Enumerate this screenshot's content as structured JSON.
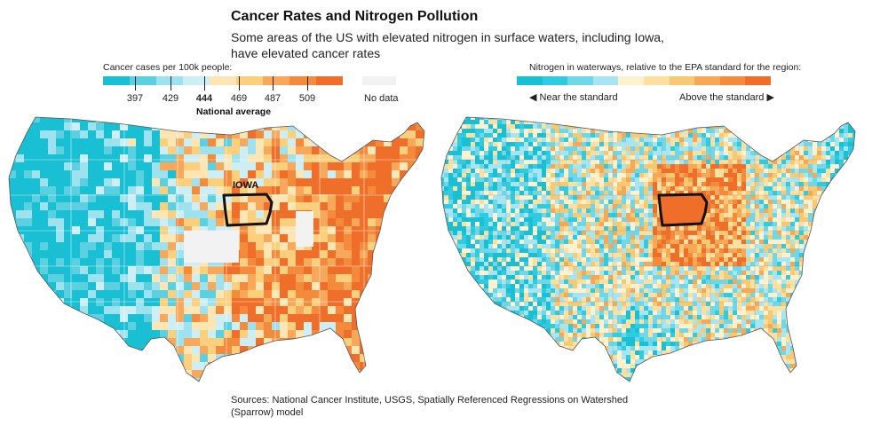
{
  "header": {
    "title": "Cancer Rates and Nitrogen Pollution",
    "subtitle": "Some areas of the US with elevated nitrogen in surface waters, including Iowa, have elevated cancer rates"
  },
  "cancer_legend": {
    "title": "Cancer cases per 100k people:",
    "colors": [
      "#19bfd3",
      "#5ad0e0",
      "#9fe2ef",
      "#cdeef5",
      "#fde6b4",
      "#fbcf7c",
      "#f7a85a",
      "#f38a3c",
      "#ef6f2a"
    ],
    "ticks": [
      "397",
      "429",
      "444",
      "469",
      "487",
      "509"
    ],
    "national_average_value": "444",
    "national_average_label": "National average",
    "no_data_label": "No data"
  },
  "nitrogen_legend": {
    "title": "Nitrogen in waterways, relative to the EPA standard for the region:",
    "colors": [
      "#19bfd3",
      "#2fcbe0",
      "#6fd8e8",
      "#a6e5f1",
      "#fdf1cf",
      "#fbe0a2",
      "#f9c873",
      "#f6a857",
      "#f38a3c",
      "#ef6f2a"
    ],
    "near_label": "◀ Near the standard",
    "above_label": "Above the standard ▶"
  },
  "maps": {
    "iowa_label": "IOWA"
  },
  "source": "Sources: National Cancer Institute, USGS, Spatially Referenced Regressions on Watershed (Sparrow) model"
}
